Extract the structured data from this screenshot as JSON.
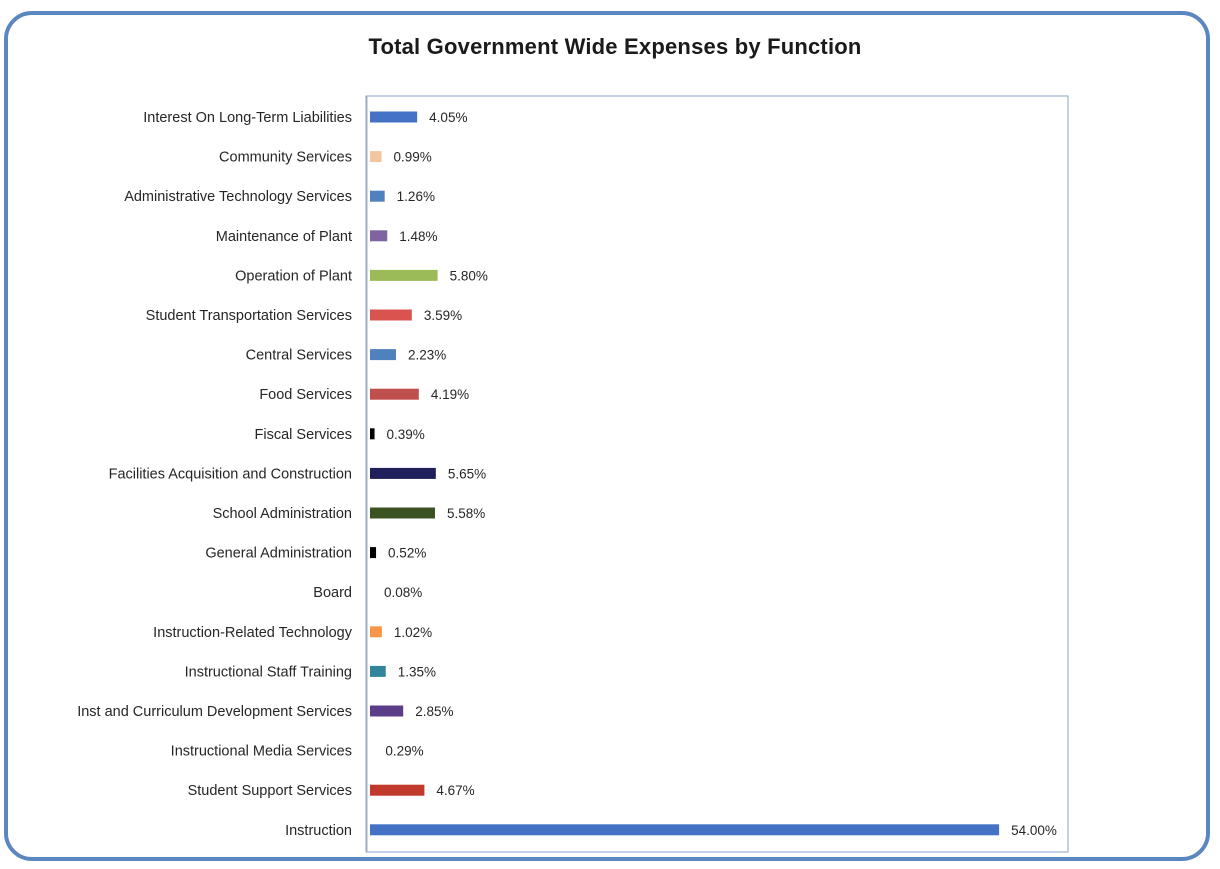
{
  "chart_data": {
    "type": "bar",
    "orientation": "horizontal",
    "title": "Total Government Wide Expenses by Function",
    "xlabel": "",
    "ylabel": "",
    "categories": [
      "Interest On Long-Term Liabilities",
      "Community Services",
      "Administrative Technology Services",
      "Maintenance of Plant",
      "Operation of Plant",
      "Student Transportation Services",
      "Central Services",
      "Food Services",
      "Fiscal Services",
      "Facilities Acquisition and Construction",
      "School Administration",
      "General Administration",
      "Board",
      "Instruction-Related Technology",
      "Instructional Staff Training",
      "Inst and Curriculum Development Services",
      "Instructional Media Services",
      "Student Support Services",
      "Instruction"
    ],
    "values": [
      4.05,
      0.99,
      1.26,
      1.48,
      5.8,
      3.59,
      2.23,
      4.19,
      0.39,
      5.65,
      5.58,
      0.52,
      0.08,
      1.02,
      1.35,
      2.85,
      0.29,
      4.67,
      54.0
    ],
    "data_labels": [
      "4.05%",
      "0.99%",
      "1.26%",
      "1.48%",
      "5.80%",
      "3.59%",
      "2.23%",
      "4.19%",
      "0.39%",
      "5.65%",
      "5.58%",
      "0.52%",
      "0.08%",
      "1.02%",
      "1.35%",
      "2.85%",
      "0.29%",
      "4.67%",
      "54.00%"
    ],
    "colors": [
      "#4472c4",
      "#f2c6a0",
      "#4f81bd",
      "#8064a2",
      "#9bbb59",
      "#d9534f",
      "#4f81bd",
      "#c0504d",
      "#000000",
      "#1f1f5c",
      "#3b5323",
      "#000000",
      "#ffffff",
      "#f79646",
      "#31859c",
      "#5c3d8a",
      "#ffffff",
      "#c0392b",
      "#4472c4"
    ],
    "xlim": [
      0,
      56
    ],
    "grid": false,
    "legend": "none"
  }
}
